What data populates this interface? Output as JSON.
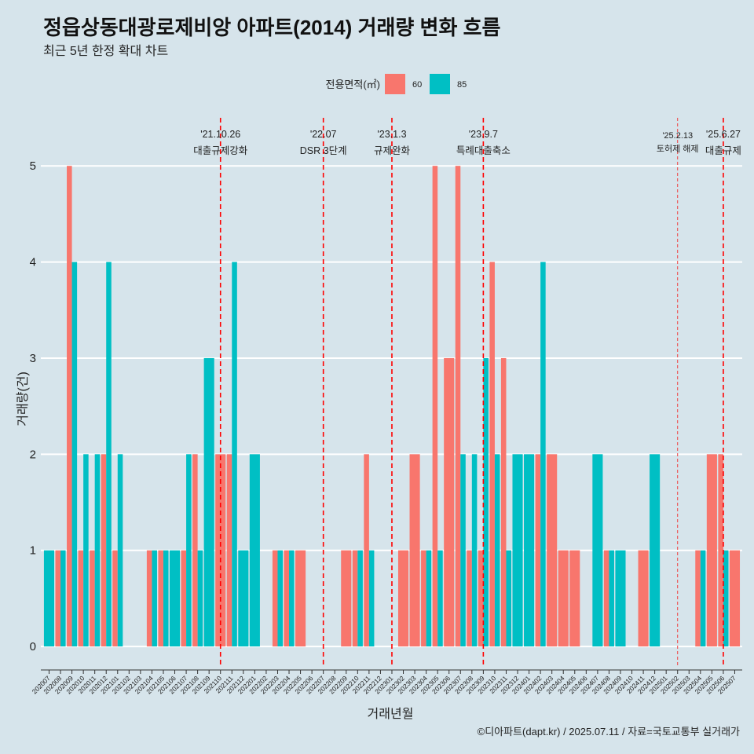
{
  "colors": {
    "background": "#D6E4EB",
    "grid": "#FFFFFF",
    "axis": "#333333",
    "event_line": "#FF0000"
  },
  "chart_data": {
    "type": "bar",
    "title": "정읍상동대광로제비앙 아파트(2014) 거래량 변화 흐름",
    "subtitle": "최근 5년 한정 확대 차트",
    "xlabel": "거래년월",
    "ylabel": "거래량(건)",
    "caption": "©디아파트(dapt.kr) / 2025.07.11 / 자료=국토교통부 실거래가",
    "legend_title": "전용면적(㎡)",
    "ylim": [
      -0.22,
      5.5
    ],
    "yticks": [
      0,
      1,
      2,
      3,
      4,
      5
    ],
    "grid": true,
    "categories": [
      "202007",
      "202008",
      "202009",
      "202010",
      "202011",
      "202012",
      "202101",
      "202102",
      "202103",
      "202104",
      "202105",
      "202106",
      "202107",
      "202108",
      "202109",
      "202110",
      "202111",
      "202112",
      "202201",
      "202202",
      "202203",
      "202204",
      "202205",
      "202206",
      "202207",
      "202208",
      "202209",
      "202210",
      "202211",
      "202212",
      "202301",
      "202302",
      "202303",
      "202304",
      "202305",
      "202306",
      "202307",
      "202308",
      "202309",
      "202310",
      "202311",
      "202312",
      "202401",
      "202402",
      "202403",
      "202404",
      "202405",
      "202406",
      "202407",
      "202408",
      "202409",
      "202410",
      "202411",
      "202412",
      "202501",
      "202502",
      "202503",
      "202504",
      "202505",
      "202506",
      "202507"
    ],
    "series": [
      {
        "name": "60",
        "color": "#F8766D",
        "values": [
          null,
          1,
          5,
          1,
          1,
          2,
          1,
          null,
          null,
          1,
          1,
          null,
          1,
          2,
          null,
          2,
          2,
          null,
          null,
          null,
          1,
          1,
          1,
          null,
          null,
          null,
          1,
          1,
          2,
          null,
          null,
          1,
          2,
          1,
          5,
          3,
          5,
          1,
          1,
          4,
          3,
          null,
          null,
          2,
          2,
          1,
          1,
          null,
          null,
          1,
          null,
          null,
          1,
          null,
          null,
          null,
          null,
          1,
          2,
          2,
          1
        ]
      },
      {
        "name": "85",
        "color": "#00BFC4",
        "values": [
          1,
          1,
          4,
          2,
          2,
          4,
          2,
          null,
          null,
          1,
          1,
          1,
          2,
          1,
          3,
          null,
          4,
          1,
          2,
          null,
          1,
          1,
          null,
          null,
          null,
          null,
          null,
          1,
          1,
          null,
          null,
          null,
          null,
          1,
          1,
          null,
          2,
          2,
          3,
          2,
          1,
          2,
          2,
          4,
          null,
          null,
          null,
          null,
          2,
          1,
          1,
          null,
          null,
          2,
          null,
          null,
          null,
          1,
          null,
          1,
          null
        ]
      }
    ],
    "events": [
      {
        "x": "202110",
        "date": "'21.10.26",
        "label": "대출규제강화",
        "color": "#FF0000"
      },
      {
        "x": "202207",
        "date": "'22.07",
        "label": "DSR 3단계",
        "color": "#FF0000"
      },
      {
        "x": "202301",
        "date": "'23.1.3",
        "label": "규제완화",
        "color": "#FF0000"
      },
      {
        "x": "202309",
        "date": "'23.9.7",
        "label": "특례대출축소",
        "color": "#FF0000"
      },
      {
        "x": "202502",
        "date": "'25.2.13",
        "label": "토허제 해제",
        "color": "#F03C3C"
      },
      {
        "x": "202506",
        "date": "'25.6.27",
        "label": "대출규제",
        "color": "#FF0000"
      }
    ]
  }
}
